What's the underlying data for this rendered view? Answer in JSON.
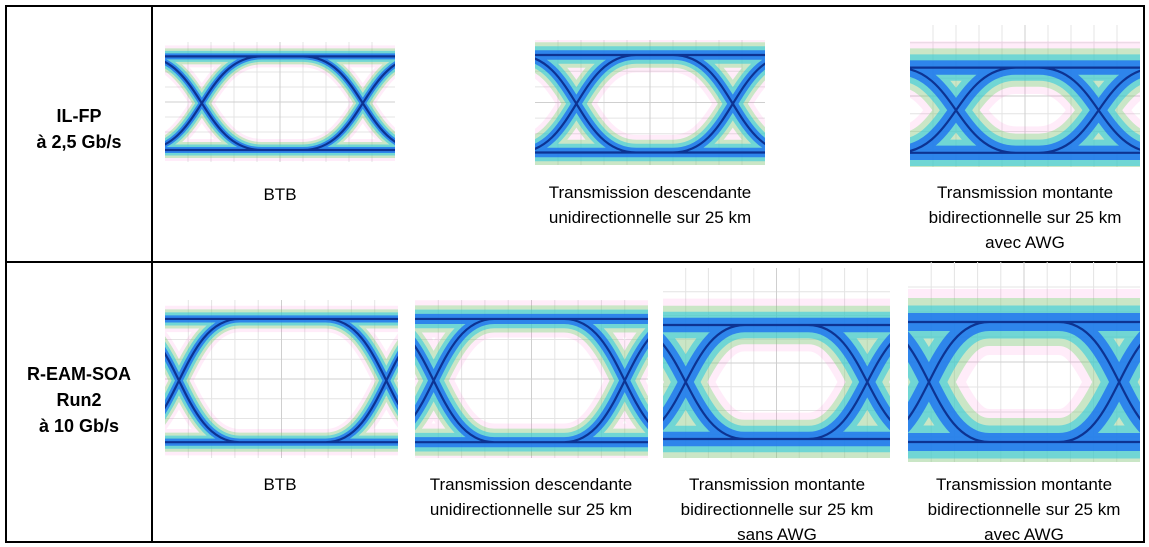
{
  "table": {
    "rows": [
      {
        "label": [
          "IL-FP",
          "à 2,5 Gb/s"
        ],
        "cells": [
          {
            "caption": [
              "BTB"
            ]
          },
          {
            "caption": [
              "Transmission descendante",
              "unidirectionnelle sur 25 km"
            ]
          },
          {
            "caption": [
              "Transmission montante",
              "bidirectionnelle sur 25 km",
              "avec AWG"
            ]
          }
        ]
      },
      {
        "label": [
          "R-EAM-SOA",
          "Run2",
          "à 10 Gb/s"
        ],
        "cells": [
          {
            "caption": [
              "BTB"
            ]
          },
          {
            "caption": [
              "Transmission descendante",
              "unidirectionnelle sur 25 km"
            ]
          },
          {
            "caption": [
              "Transmission montante",
              "bidirectionnelle sur 25 km",
              "sans AWG"
            ]
          },
          {
            "caption": [
              "Transmission montante",
              "bidirectionnelle sur 25 km",
              "avec AWG"
            ]
          }
        ]
      }
    ]
  }
}
